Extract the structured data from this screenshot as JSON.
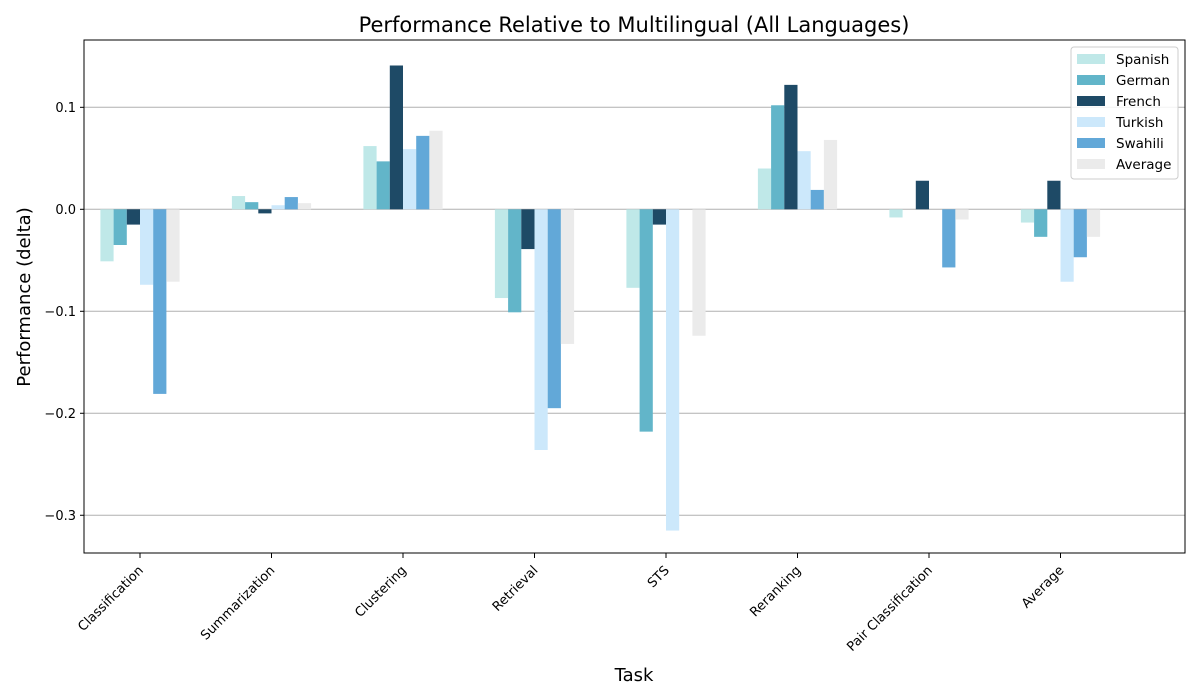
{
  "chart_data": {
    "type": "bar",
    "title": "Performance Relative to Multilingual (All Languages)",
    "xlabel": "Task",
    "ylabel": "Performance (delta)",
    "categories": [
      "Classification",
      "Summarization",
      "Clustering",
      "Retrieval",
      "STS",
      "Reranking",
      "Pair Classification",
      "Average"
    ],
    "series": [
      {
        "name": "Spanish",
        "color": "#bfe8e8",
        "values": [
          -0.051,
          0.013,
          0.062,
          -0.087,
          -0.077,
          0.04,
          -0.008,
          -0.013
        ]
      },
      {
        "name": "German",
        "color": "#62b5c9",
        "values": [
          -0.035,
          0.007,
          0.047,
          -0.101,
          -0.218,
          0.102,
          0.0,
          -0.027
        ]
      },
      {
        "name": "French",
        "color": "#1e4a66",
        "values": [
          -0.015,
          -0.004,
          0.141,
          -0.039,
          -0.015,
          0.122,
          0.028,
          0.028
        ]
      },
      {
        "name": "Turkish",
        "color": "#cce8fb",
        "values": [
          -0.074,
          0.004,
          0.059,
          -0.236,
          -0.315,
          0.057,
          0.0,
          -0.071
        ]
      },
      {
        "name": "Swahili",
        "color": "#62a8d8",
        "values": [
          -0.181,
          0.012,
          0.072,
          -0.195,
          0.0,
          0.019,
          -0.057,
          -0.047
        ]
      },
      {
        "name": "Average",
        "color": "#ebebeb",
        "values": [
          -0.071,
          0.006,
          0.077,
          -0.132,
          -0.124,
          0.068,
          -0.01,
          -0.027
        ]
      }
    ],
    "yticks": [
      0.1,
      0.0,
      -0.1,
      -0.2,
      -0.3
    ],
    "ytick_labels": [
      "0.1",
      "0.0",
      "−0.1",
      "−0.2",
      "−0.3"
    ],
    "ylim": [
      -0.337,
      0.166
    ],
    "grid": "y",
    "legend_position": "top-right"
  }
}
